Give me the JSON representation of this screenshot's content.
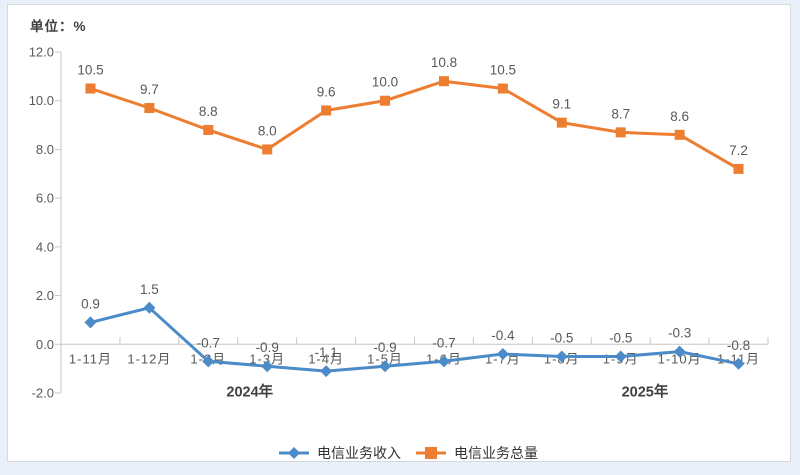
{
  "chart_data": {
    "type": "line",
    "unit_label": "单位：%",
    "categories": [
      "1-11月",
      "1-12月",
      "1-2月",
      "1-3月",
      "1-4月",
      "1-5月",
      "1-6月",
      "1-7月",
      "1-8月",
      "1-9月",
      "1-10月",
      "1-11月"
    ],
    "x_year_labels": [
      "2024年",
      "2025年"
    ],
    "y_axis": {
      "min": -2.0,
      "max": 12.0,
      "step": 2.0,
      "tick_format_decimals": 1
    },
    "series": [
      {
        "name": "电信业务收入",
        "color": "#4b8bc8",
        "marker": "diamond",
        "values": [
          0.9,
          1.5,
          -0.7,
          -0.9,
          -1.1,
          -0.9,
          -0.7,
          -0.4,
          -0.5,
          -0.5,
          -0.3,
          -0.8
        ]
      },
      {
        "name": "电信业务总量",
        "color": "#ed7d31",
        "marker": "square",
        "values": [
          10.5,
          9.7,
          8.8,
          8.0,
          9.6,
          10.0,
          10.8,
          10.5,
          9.1,
          8.7,
          8.6,
          7.2
        ]
      }
    ],
    "colors": {
      "axis": "#c6c6c6",
      "tick_label": "#595959",
      "data_label": "#595959",
      "year_label": "#404040",
      "panel_border": "#d8d8d8",
      "panel_bg": "#ffffff",
      "frame_bg": "#e9f0f9"
    },
    "legend_position": "bottom-center",
    "grid": "off",
    "title": "",
    "xlabel": "",
    "ylabel": ""
  }
}
